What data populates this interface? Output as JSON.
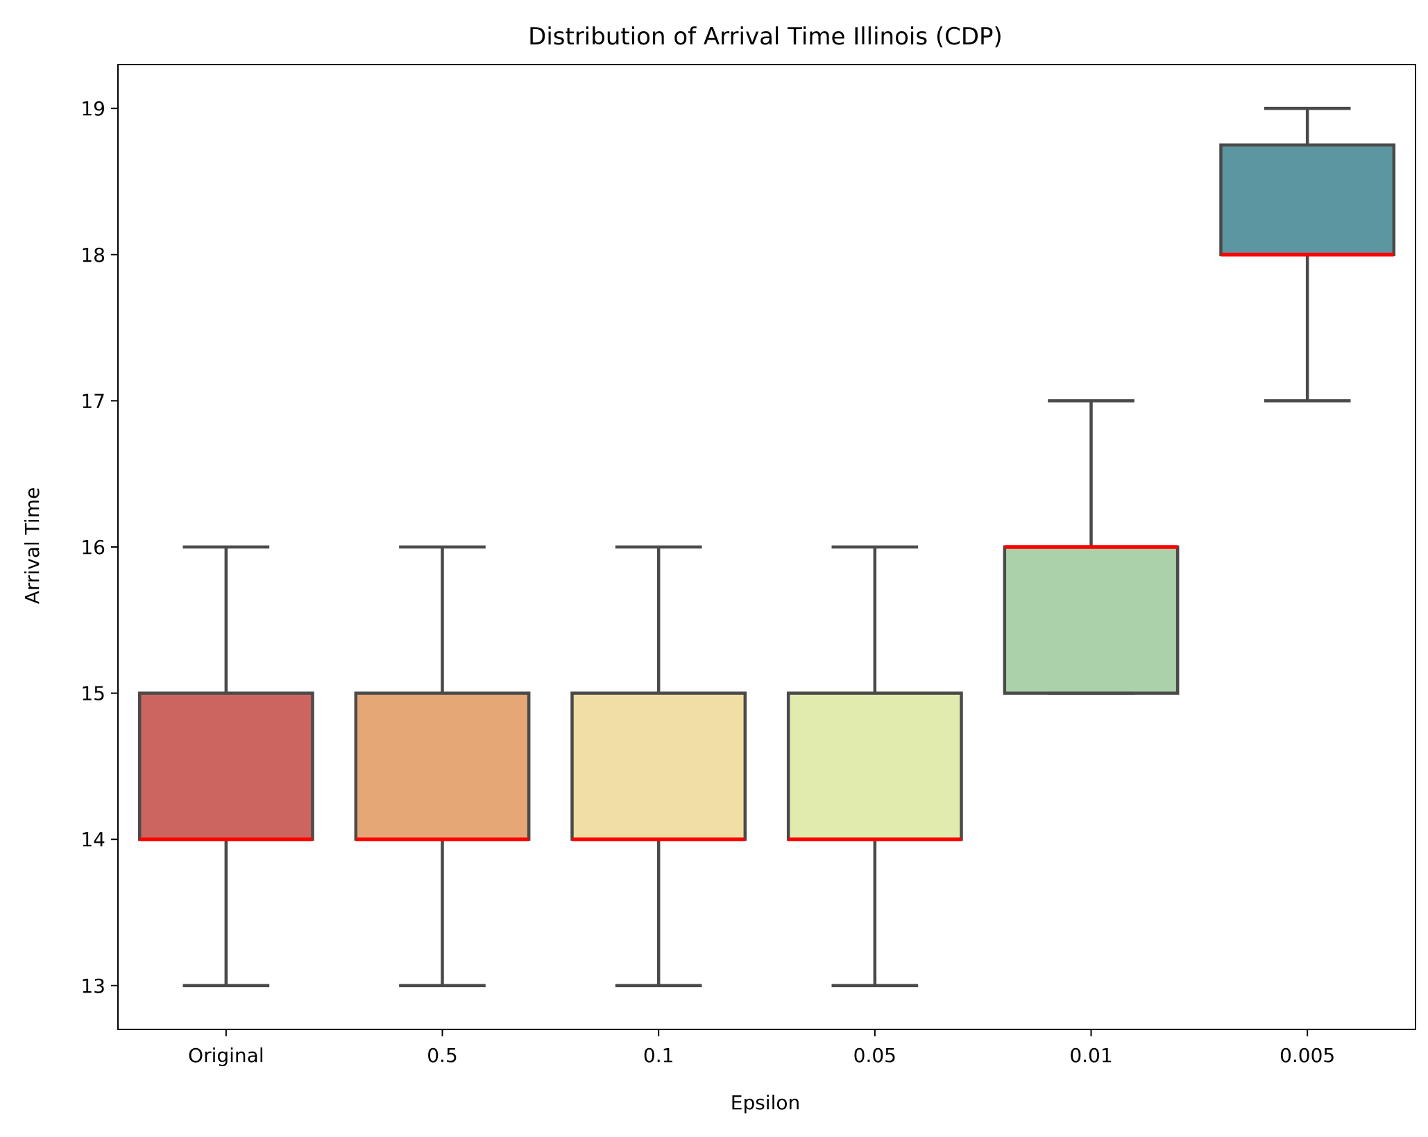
{
  "chart_data": {
    "type": "box",
    "title": "Distribution of Arrival Time Illinois (CDP)",
    "xlabel": "Epsilon",
    "ylabel": "Arrival Time",
    "ylim": [
      12.7,
      19.3
    ],
    "yticks": [
      13,
      14,
      15,
      16,
      17,
      18,
      19
    ],
    "grid": false,
    "categories": [
      "Original",
      "0.5",
      "0.1",
      "0.05",
      "0.01",
      "0.005"
    ],
    "boxes": [
      {
        "category": "Original",
        "whisker_low": 13,
        "q1": 14,
        "median": 14,
        "q3": 15,
        "whisker_high": 16,
        "color": "#cc6560"
      },
      {
        "category": "0.5",
        "whisker_low": 13,
        "q1": 14,
        "median": 14,
        "q3": 15,
        "whisker_high": 16,
        "color": "#e4a775"
      },
      {
        "category": "0.1",
        "whisker_low": 13,
        "q1": 14,
        "median": 14,
        "q3": 15,
        "whisker_high": 16,
        "color": "#efdfa4"
      },
      {
        "category": "0.05",
        "whisker_low": 13,
        "q1": 14,
        "median": 14,
        "q3": 15,
        "whisker_high": 16,
        "color": "#e2ebae"
      },
      {
        "category": "0.01",
        "whisker_low": 15,
        "q1": 15,
        "median": 16,
        "q3": 16,
        "whisker_high": 17,
        "color": "#aad1aa"
      },
      {
        "category": "0.005",
        "whisker_low": 17,
        "q1": 18,
        "median": 18,
        "q3": 18.75,
        "whisker_high": 19,
        "color": "#5c96a1"
      }
    ],
    "median_color": "#ff0000",
    "line_color": "#4a4a4a"
  }
}
